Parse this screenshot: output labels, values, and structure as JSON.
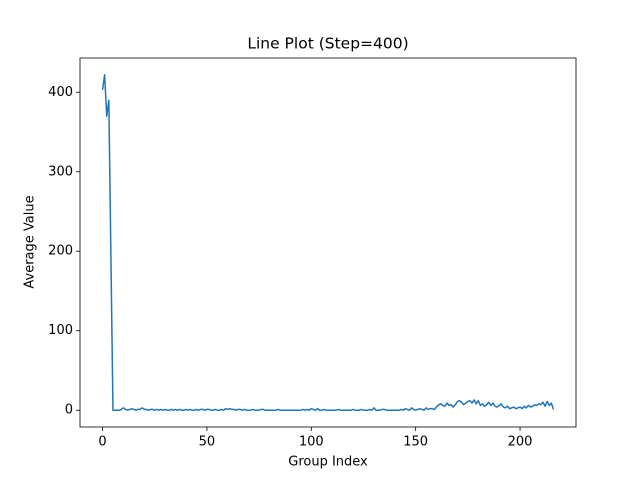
{
  "chart_data": {
    "type": "line",
    "title": "Line Plot (Step=400)",
    "xlabel": "Group Index",
    "ylabel": "Average Value",
    "color": "#1f77b4",
    "x": [
      0,
      1,
      2,
      3,
      4,
      5,
      6,
      7,
      8,
      9,
      10,
      11,
      12,
      13,
      14,
      15,
      16,
      17,
      18,
      19,
      20,
      21,
      22,
      23,
      24,
      25,
      26,
      27,
      28,
      29,
      30,
      31,
      32,
      33,
      34,
      35,
      36,
      37,
      38,
      39,
      40,
      41,
      42,
      43,
      44,
      45,
      46,
      47,
      48,
      49,
      50,
      51,
      52,
      53,
      54,
      55,
      56,
      57,
      58,
      59,
      60,
      61,
      62,
      63,
      64,
      65,
      66,
      67,
      68,
      69,
      70,
      71,
      72,
      73,
      74,
      75,
      76,
      77,
      78,
      79,
      80,
      81,
      82,
      83,
      84,
      85,
      86,
      87,
      88,
      89,
      90,
      91,
      92,
      93,
      94,
      95,
      96,
      97,
      98,
      99,
      100,
      101,
      102,
      103,
      104,
      105,
      106,
      107,
      108,
      109,
      110,
      111,
      112,
      113,
      114,
      115,
      116,
      117,
      118,
      119,
      120,
      121,
      122,
      123,
      124,
      125,
      126,
      127,
      128,
      129,
      130,
      131,
      132,
      133,
      134,
      135,
      136,
      137,
      138,
      139,
      140,
      141,
      142,
      143,
      144,
      145,
      146,
      147,
      148,
      149,
      150,
      151,
      152,
      153,
      154,
      155,
      156,
      157,
      158,
      159,
      160,
      161,
      162,
      163,
      164,
      165,
      166,
      167,
      168,
      169,
      170,
      171,
      172,
      173,
      174,
      175,
      176,
      177,
      178,
      179,
      180,
      181,
      182,
      183,
      184,
      185,
      186,
      187,
      188,
      189,
      190,
      191,
      192,
      193,
      194,
      195,
      196,
      197,
      198,
      199,
      200,
      201,
      202,
      203,
      204,
      205,
      206,
      207,
      208,
      209,
      210,
      211,
      212,
      213,
      214,
      215,
      216
    ],
    "values": [
      403,
      422,
      370,
      390,
      195,
      0,
      0,
      0,
      0,
      1,
      3,
      1,
      0,
      1,
      2,
      1,
      0,
      1,
      1,
      3,
      1,
      1,
      0,
      1,
      1,
      0,
      1,
      0,
      1,
      0,
      1,
      0,
      0,
      1,
      0,
      1,
      0,
      1,
      0,
      0,
      1,
      0,
      1,
      0,
      0,
      1,
      0,
      1,
      1,
      0,
      1,
      1,
      0,
      0,
      1,
      0,
      0,
      1,
      0,
      2,
      1,
      2,
      1,
      1,
      0,
      1,
      1,
      0,
      1,
      0,
      0,
      0,
      1,
      0,
      0,
      0,
      1,
      1,
      0,
      0,
      0,
      0,
      0,
      0,
      1,
      0,
      0,
      0,
      0,
      0,
      0,
      0,
      0,
      0,
      0,
      0,
      1,
      0,
      1,
      0,
      2,
      1,
      0,
      2,
      0,
      0,
      1,
      0,
      0,
      0,
      0,
      0,
      0,
      1,
      0,
      0,
      0,
      0,
      0,
      0,
      1,
      0,
      0,
      0,
      1,
      0,
      0,
      0,
      1,
      0,
      3,
      0,
      0,
      0,
      1,
      1,
      0,
      0,
      0,
      0,
      0,
      0,
      0,
      1,
      0,
      2,
      1,
      0,
      3,
      1,
      0,
      1,
      2,
      1,
      0,
      3,
      1,
      2,
      2,
      1,
      4,
      7,
      8,
      6,
      5,
      9,
      6,
      7,
      4,
      7,
      11,
      12,
      10,
      7,
      9,
      11,
      12,
      9,
      13,
      8,
      12,
      6,
      8,
      5,
      7,
      10,
      6,
      9,
      5,
      4,
      6,
      8,
      4,
      3,
      5,
      2,
      3,
      4,
      2,
      3,
      4,
      2,
      5,
      3,
      6,
      4,
      5,
      7,
      6,
      8,
      7,
      10,
      5,
      11,
      6,
      9,
      1
    ],
    "xlim": [
      -10.8,
      226.8
    ],
    "xticks": [
      0,
      50,
      100,
      150,
      200
    ],
    "ylim": [
      -21.1,
      443.1
    ],
    "yticks": [
      0,
      100,
      200,
      300,
      400
    ]
  }
}
